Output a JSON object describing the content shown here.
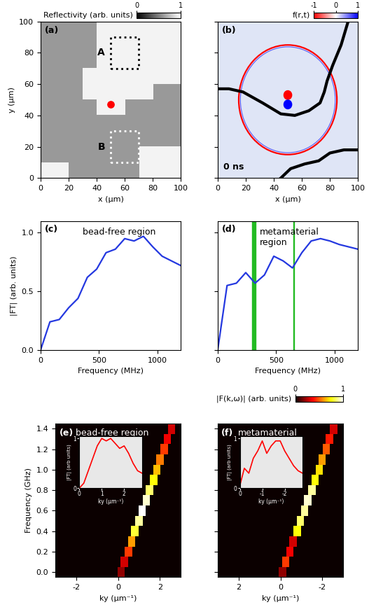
{
  "chart_data": [
    {
      "type": "heatmap",
      "panel_label": "(a)",
      "xlabel": "x (µm)",
      "ylabel": "y (µm)",
      "xlim": [
        0,
        100
      ],
      "ylim": [
        0,
        100
      ],
      "xticks": [
        0,
        20,
        40,
        60,
        80,
        100
      ],
      "yticks": [
        0,
        20,
        40,
        60,
        80,
        100
      ],
      "cells": [
        [
          0.95,
          0.95,
          0.6,
          0.6,
          0.6,
          0.6,
          0.6,
          0.95,
          0.95,
          0.95
        ],
        [
          0.6,
          0.6,
          0.6,
          0.6,
          0.6,
          0.6,
          0.6,
          0.95,
          0.95,
          0.95
        ],
        [
          0.6,
          0.6,
          0.6,
          0.6,
          0.6,
          0.6,
          0.6,
          0.6,
          0.6,
          0.6
        ],
        [
          0.6,
          0.6,
          0.6,
          0.6,
          0.6,
          0.6,
          0.6,
          0.6,
          0.6,
          0.6
        ],
        [
          0.6,
          0.6,
          0.6,
          0.6,
          0.95,
          0.95,
          0.6,
          0.6,
          0.6,
          0.6
        ],
        [
          0.6,
          0.6,
          0.6,
          0.95,
          0.95,
          0.95,
          0.95,
          0.95,
          0.6,
          0.6
        ],
        [
          0.6,
          0.6,
          0.6,
          0.95,
          0.95,
          0.95,
          0.95,
          0.95,
          0.95,
          0.95
        ],
        [
          0.6,
          0.6,
          0.6,
          0.6,
          0.95,
          0.95,
          0.95,
          0.95,
          0.95,
          0.95
        ],
        [
          0.6,
          0.6,
          0.6,
          0.6,
          0.95,
          0.95,
          0.95,
          0.95,
          0.95,
          0.95
        ],
        [
          0.6,
          0.6,
          0.6,
          0.6,
          0.95,
          0.95,
          0.95,
          0.95,
          0.95,
          0.95
        ]
      ],
      "colorbar": {
        "label": "Reflectivity (arb. units)",
        "lim": [
          0,
          1
        ],
        "ticks": [
          0,
          1
        ]
      },
      "regions": [
        {
          "label": "A",
          "x": [
            50,
            70
          ],
          "y": [
            70,
            90
          ],
          "color": "black"
        },
        {
          "label": "B",
          "x": [
            50,
            70
          ],
          "y": [
            10,
            30
          ],
          "color": "white"
        }
      ],
      "points": [
        {
          "x": 50,
          "y": 47,
          "color": "red"
        }
      ]
    },
    {
      "type": "heatmap",
      "panel_label": "(b)",
      "xlabel": "x (µm)",
      "xlim": [
        0,
        100
      ],
      "ylim": [
        0,
        100
      ],
      "xticks": [
        0,
        20,
        40,
        60,
        80,
        100
      ],
      "yticks": [
        0,
        20,
        40,
        60,
        80,
        100
      ],
      "tick_labels": "x",
      "colorbar": {
        "label": "f(r,t)",
        "lim": [
          -1,
          1
        ],
        "ticks": [
          -1,
          0,
          1
        ]
      },
      "annotation": "0 ns",
      "ring": {
        "x": 50,
        "y": 50,
        "radius": 35,
        "value": -1
      },
      "dipole": [
        {
          "x": 50,
          "y": 53,
          "value": -1
        },
        {
          "x": 50,
          "y": 47,
          "value": 1
        }
      ],
      "boundaries": [
        {
          "x": [
            93,
            88,
            82,
            78,
            76,
            73,
            65,
            55,
            45,
            32,
            18,
            8,
            0
          ],
          "y": [
            100,
            85,
            72,
            62,
            55,
            48,
            43,
            40,
            41,
            48,
            55,
            57,
            57
          ]
        },
        {
          "x": [
            45,
            52,
            62,
            72,
            80,
            90,
            100
          ],
          "y": [
            0,
            6,
            9,
            11,
            16,
            18,
            18
          ]
        }
      ]
    },
    {
      "type": "line",
      "panel_label": "(c)",
      "annotation": "bead-free region",
      "xlabel": "Frequency (MHz)",
      "ylabel": "|FT| (arb. units)",
      "color": "#2438e0",
      "xlim": [
        0,
        1200
      ],
      "ylim": [
        0,
        1.1
      ],
      "xticks": [
        0,
        500,
        1000
      ],
      "yticks": [
        {
          "value": 0,
          "label": "0.0"
        },
        {
          "value": 0.5,
          "label": "0.5"
        },
        {
          "value": 1,
          "label": "1.0"
        }
      ],
      "x": [
        0,
        80,
        160,
        240,
        320,
        400,
        480,
        560,
        640,
        720,
        800,
        880,
        960,
        1040,
        1120,
        1200
      ],
      "values": [
        0,
        0.24,
        0.26,
        0.36,
        0.44,
        0.62,
        0.69,
        0.83,
        0.86,
        0.95,
        0.93,
        0.97,
        0.88,
        0.8,
        0.76,
        0.72
      ]
    },
    {
      "type": "line",
      "panel_label": "(d)",
      "annotation": "metamaterial\nregion",
      "xlabel": "Frequency (MHz)",
      "color": "#2438e0",
      "tick_labels": "x",
      "xlim": [
        0,
        1200
      ],
      "ylim": [
        0,
        1.1
      ],
      "xticks": [
        0,
        500,
        1000
      ],
      "yticks": [
        {
          "value": 0,
          "label": "0.0"
        },
        {
          "value": 0.5,
          "label": "0.5"
        },
        {
          "value": 1,
          "label": "1.0"
        }
      ],
      "x": [
        0,
        80,
        160,
        240,
        320,
        400,
        480,
        560,
        640,
        720,
        800,
        880,
        960,
        1040,
        1120,
        1200
      ],
      "values": [
        0,
        0.55,
        0.57,
        0.66,
        0.57,
        0.64,
        0.8,
        0.76,
        0.7,
        0.83,
        0.93,
        0.95,
        0.93,
        0.9,
        0.88,
        0.86
      ],
      "bands": [
        {
          "x": 310,
          "width": 30,
          "color": "#22bb22"
        },
        {
          "x": 650,
          "width": 6,
          "color": "#22bb22"
        }
      ]
    },
    {
      "type": "heatmap",
      "panel_label": "(e)",
      "annotation": "bead-free region",
      "xlabel": "ky (µm⁻¹)",
      "ylabel": "Frequency (GHz)",
      "xlim": [
        -3,
        3
      ],
      "ylim": [
        -0.05,
        1.45
      ],
      "xticks": [
        -2,
        0,
        2
      ],
      "yticks": [
        {
          "value": 0,
          "label": "0.0"
        },
        {
          "value": 0.2,
          "label": "0.2"
        },
        {
          "value": 0.4,
          "label": "0.4"
        },
        {
          "value": 0.6,
          "label": "0.6"
        },
        {
          "value": 0.8,
          "label": "0.8"
        },
        {
          "value": 1,
          "label": "1.0"
        },
        {
          "value": 1.2,
          "label": "1.2"
        },
        {
          "value": 1.4,
          "label": "1.4"
        }
      ],
      "ridge": {
        "frequency": [
          0,
          0.1,
          0.2,
          0.3,
          0.4,
          0.5,
          0.6,
          0.7,
          0.8,
          0.9,
          1.0,
          1.1,
          1.2,
          1.3,
          1.4
        ],
        "ky": [
          0.15,
          0.3,
          0.5,
          0.65,
          0.8,
          1.0,
          1.15,
          1.35,
          1.5,
          1.7,
          1.85,
          2.0,
          2.2,
          2.35,
          2.55
        ],
        "intensity": [
          0.2,
          0.3,
          0.45,
          0.6,
          0.8,
          0.9,
          1.0,
          0.95,
          0.85,
          0.75,
          0.65,
          0.55,
          0.45,
          0.35,
          0.3
        ]
      },
      "inset": {
        "xlabel": "ky (µm⁻¹)",
        "ylabel": "|FT| (arb units)",
        "color": "red",
        "xlim": [
          0,
          2.8
        ],
        "ylim": [
          0,
          1.05
        ],
        "xticks": [
          0,
          1,
          2
        ],
        "yticks": [
          0,
          1
        ],
        "x": [
          0,
          0.2,
          0.4,
          0.6,
          0.8,
          1.0,
          1.2,
          1.4,
          1.6,
          1.8,
          2.0,
          2.2,
          2.4,
          2.6,
          2.8
        ],
        "values": [
          0,
          0.1,
          0.35,
          0.6,
          0.85,
          1.0,
          0.95,
          1.0,
          0.9,
          0.8,
          0.85,
          0.7,
          0.5,
          0.35,
          0.3
        ]
      }
    },
    {
      "type": "heatmap",
      "panel_label": "(f)",
      "annotation": "metamaterial",
      "xlabel": "ky (µm⁻¹)",
      "tick_labels": "x",
      "xlim": [
        3,
        -3
      ],
      "ylim": [
        -0.05,
        1.45
      ],
      "xticks": [
        2,
        0,
        -2
      ],
      "yticks": [
        {
          "value": 0,
          "label": "0.0"
        },
        {
          "value": 0.2,
          "label": "0.2"
        },
        {
          "value": 0.4,
          "label": "0.4"
        },
        {
          "value": 0.6,
          "label": "0.6"
        },
        {
          "value": 0.8,
          "label": "0.8"
        },
        {
          "value": 1,
          "label": "1.0"
        },
        {
          "value": 1.2,
          "label": "1.2"
        },
        {
          "value": 1.4,
          "label": "1.4"
        }
      ],
      "colorbar": {
        "label": "|F(k,ω)| (arb. units)",
        "lim": [
          0,
          1
        ],
        "ticks": [
          0,
          1
        ]
      },
      "ridge": {
        "frequency": [
          0,
          0.1,
          0.2,
          0.3,
          0.4,
          0.5,
          0.6,
          0.7,
          0.8,
          0.9,
          1.0,
          1.1,
          1.2,
          1.3,
          1.4
        ],
        "ky": [
          -0.1,
          -0.25,
          -0.45,
          -0.6,
          -0.8,
          -0.95,
          -1.15,
          -1.3,
          -1.5,
          -1.65,
          -1.85,
          -2.0,
          -2.2,
          -2.35,
          -2.55
        ],
        "intensity": [
          0.2,
          0.45,
          0.35,
          0.3,
          0.75,
          0.85,
          0.9,
          0.95,
          0.9,
          0.75,
          0.7,
          0.6,
          0.5,
          0.4,
          0.3
        ]
      },
      "inset": {
        "xlabel": "ky (µm⁻¹)",
        "ylabel": "|FT| (arb units)",
        "color": "red",
        "xlim": [
          0,
          -2.8
        ],
        "ylim": [
          0,
          1.05
        ],
        "xticks": [
          0,
          -1,
          -2
        ],
        "yticks": [
          0,
          1
        ],
        "x": [
          0,
          -0.2,
          -0.4,
          -0.6,
          -0.8,
          -1.0,
          -1.2,
          -1.4,
          -1.6,
          -1.8,
          -2.0,
          -2.2,
          -2.4,
          -2.6,
          -2.8
        ],
        "values": [
          0.05,
          0.4,
          0.3,
          0.6,
          0.75,
          0.95,
          0.7,
          0.85,
          0.95,
          0.95,
          0.75,
          0.6,
          0.45,
          0.35,
          0.3
        ]
      }
    }
  ]
}
